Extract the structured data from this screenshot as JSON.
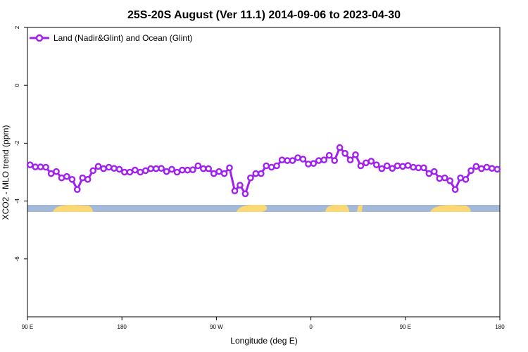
{
  "chart_data": {
    "type": "line",
    "title": "25S-20S August (Ver 11.1)   2014-09-06 to 2023-04-30",
    "xlabel": "Longitude (deg E)",
    "ylabel": "XCO2 - MLO trend (ppm)",
    "xlim": [
      90,
      450
    ],
    "ylim": [
      -8,
      2
    ],
    "x_ticks": [
      90,
      162,
      234,
      306,
      378,
      450
    ],
    "x_tick_labels": [
      "90 E",
      "180",
      "90 W",
      "0",
      "90 E",
      "180"
    ],
    "y_ticks": [
      2,
      0,
      -2,
      -4,
      -6
    ],
    "y_tick_labels": [
      "2",
      "0",
      "-2",
      "-4",
      "-6"
    ],
    "grid": false,
    "legend_position": "top-left",
    "series": [
      {
        "name": "Land (Nadir&Glint) and Ocean (Glint)",
        "color": "#a020f0",
        "x": [
          92,
          96,
          100,
          104,
          108,
          112,
          116,
          120,
          124,
          128,
          132,
          136,
          140,
          144,
          148,
          152,
          156,
          160,
          164,
          168,
          172,
          176,
          180,
          184,
          188,
          192,
          196,
          200,
          204,
          208,
          212,
          216,
          220,
          224,
          228,
          232,
          236,
          240,
          244,
          248,
          252,
          256,
          260,
          264,
          268,
          272,
          276,
          280,
          284,
          288,
          292,
          296,
          300,
          304,
          308,
          312,
          316,
          320,
          324,
          328,
          332,
          336,
          340,
          344,
          348,
          352,
          356,
          360,
          364,
          368,
          372,
          376,
          380,
          384,
          388,
          392,
          396,
          400,
          404,
          408,
          412,
          416,
          420,
          424,
          428,
          432,
          436,
          440,
          444,
          448
        ],
        "y": [
          -2.75,
          -2.82,
          -2.82,
          -2.83,
          -3.05,
          -2.98,
          -3.2,
          -3.15,
          -3.25,
          -3.6,
          -3.2,
          -3.25,
          -2.95,
          -2.8,
          -2.88,
          -2.83,
          -2.87,
          -2.9,
          -3.0,
          -3.0,
          -2.93,
          -3.0,
          -2.95,
          -2.88,
          -2.88,
          -2.87,
          -2.98,
          -2.9,
          -3.0,
          -2.93,
          -2.93,
          -2.92,
          -2.78,
          -2.88,
          -2.88,
          -3.05,
          -2.98,
          -3.05,
          -2.85,
          -3.65,
          -3.45,
          -3.75,
          -3.2,
          -3.05,
          -3.05,
          -2.78,
          -2.83,
          -2.78,
          -2.58,
          -2.6,
          -2.6,
          -2.5,
          -2.55,
          -2.72,
          -2.7,
          -2.6,
          -2.58,
          -2.42,
          -2.6,
          -2.15,
          -2.35,
          -2.58,
          -2.4,
          -2.78,
          -2.68,
          -2.62,
          -2.75,
          -2.88,
          -2.78,
          -2.87,
          -2.78,
          -2.8,
          -2.77,
          -2.83,
          -2.85,
          -2.85,
          -3.05,
          -2.98,
          -3.22,
          -3.2,
          -3.3,
          -3.6,
          -3.2,
          -3.25,
          -2.95,
          -2.8,
          -2.88,
          -2.83,
          -2.87,
          -2.9
        ]
      }
    ]
  }
}
